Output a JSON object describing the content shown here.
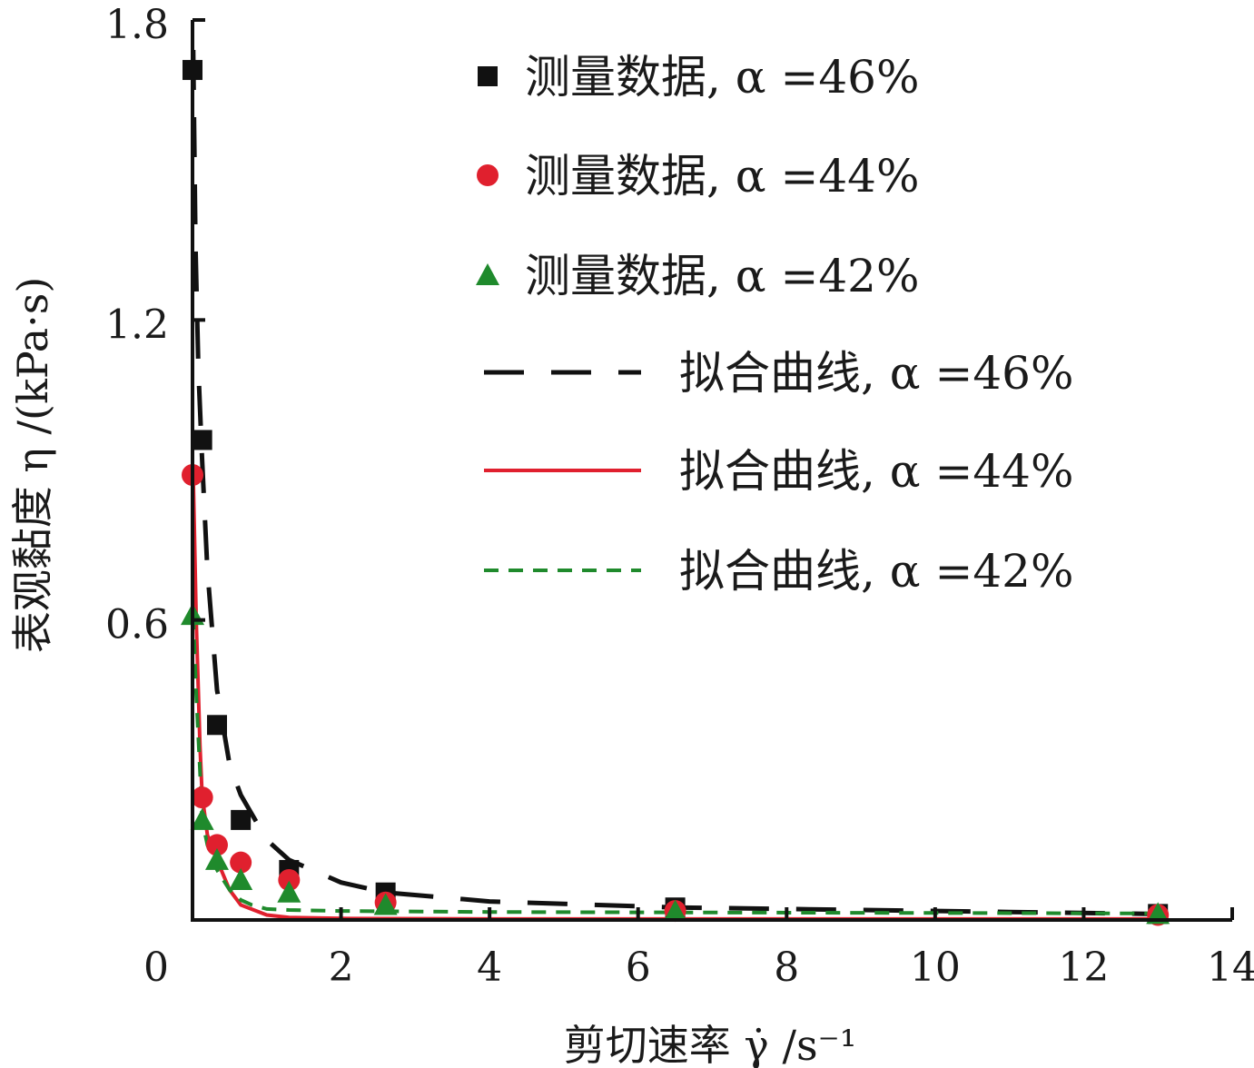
{
  "chart_data": {
    "type": "scatter",
    "xlabel": "剪切速率 γ̇ /s⁻¹",
    "ylabel": "表观黏度 η /(kPa·s)",
    "xlim": [
      0,
      14
    ],
    "ylim": [
      0,
      1.8
    ],
    "x_ticks": [
      "0",
      "2",
      "4",
      "6",
      "8",
      "10",
      "12",
      "14"
    ],
    "y_ticks": [
      "0.6",
      "1.2",
      "1.8"
    ],
    "grid": false,
    "legend_position": "top-right",
    "series": [
      {
        "name": "测量数据, α =46%",
        "kind": "points",
        "marker": "square",
        "color": "#111111",
        "x": [
          0.0,
          0.13,
          0.33,
          0.65,
          1.3,
          2.6,
          6.5,
          13.0
        ],
        "y": [
          1.7,
          0.96,
          0.39,
          0.2,
          0.1,
          0.055,
          0.025,
          0.012
        ]
      },
      {
        "name": "测量数据, α =44%",
        "kind": "points",
        "marker": "circle",
        "color": "#e0202e",
        "x": [
          0.0,
          0.13,
          0.33,
          0.65,
          1.3,
          2.6,
          6.5,
          13.0
        ],
        "y": [
          0.89,
          0.245,
          0.15,
          0.115,
          0.08,
          0.035,
          0.018,
          0.01
        ]
      },
      {
        "name": "测量数据, α =42%",
        "kind": "points",
        "marker": "triangle",
        "color": "#1f8a2c",
        "x": [
          0.0,
          0.13,
          0.33,
          0.65,
          1.3,
          2.6,
          6.5,
          13.0
        ],
        "y": [
          0.61,
          0.2,
          0.12,
          0.08,
          0.055,
          0.03,
          0.017,
          0.012
        ]
      },
      {
        "name": "拟合曲线, α =46%",
        "kind": "line",
        "dash": "long",
        "color": "#111111",
        "x": [
          0.01,
          0.04,
          0.08,
          0.13,
          0.2,
          0.33,
          0.5,
          0.65,
          1.0,
          1.3,
          2.0,
          2.6,
          4.0,
          6.5,
          9.0,
          11.0,
          13.0
        ],
        "y": [
          1.74,
          1.35,
          1.1,
          0.92,
          0.7,
          0.46,
          0.31,
          0.25,
          0.16,
          0.12,
          0.075,
          0.055,
          0.037,
          0.025,
          0.02,
          0.016,
          0.012
        ]
      },
      {
        "name": "拟合曲线, α =44%",
        "kind": "line",
        "dash": "solid",
        "color": "#e0202e",
        "x": [
          0.01,
          0.05,
          0.1,
          0.13,
          0.2,
          0.33,
          0.5,
          0.65,
          1.0,
          1.3,
          2.0,
          4.0,
          6.5,
          13.0
        ],
        "y": [
          0.89,
          0.6,
          0.35,
          0.25,
          0.17,
          0.12,
          0.06,
          0.03,
          0.01,
          0.005,
          0.003,
          0.002,
          0.002,
          0.002
        ]
      },
      {
        "name": "拟合曲线, α =42%",
        "kind": "line",
        "dash": "short",
        "color": "#1f8a2c",
        "x": [
          0.01,
          0.05,
          0.1,
          0.13,
          0.2,
          0.33,
          0.5,
          0.65,
          0.8,
          1.0,
          1.3,
          2.0,
          4.0,
          6.5,
          13.0
        ],
        "y": [
          0.61,
          0.45,
          0.3,
          0.2,
          0.15,
          0.1,
          0.06,
          0.04,
          0.03,
          0.022,
          0.02,
          0.018,
          0.016,
          0.015,
          0.013
        ]
      }
    ]
  }
}
